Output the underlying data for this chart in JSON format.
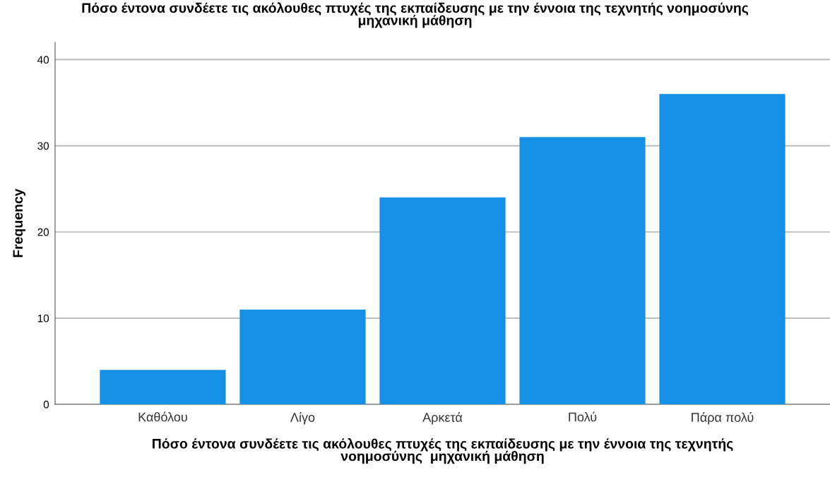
{
  "chart_data": {
    "type": "bar",
    "title": "Πόσο έντονα συνδέετε τις ακόλουθες πτυχές της εκπαίδευσης με την έννοια της τεχνητής νοημοσύνης\nμηχανική μάθηση",
    "xlabel": "Πόσο έντονα συνδέετε τις ακόλουθες πτυχές της εκπαίδευσης με την έννοια της τεχνητής\nνοημοσύνης  μηχανική μάθηση",
    "ylabel": "Frequency",
    "categories": [
      "Καθόλου",
      "Λίγο",
      "Αρκετά",
      "Πολύ",
      "Πάρα πολύ"
    ],
    "values": [
      4,
      11,
      24,
      31,
      36
    ],
    "color": "#1491e6",
    "ylim": [
      0,
      42
    ],
    "yticks": [
      0,
      10,
      20,
      30,
      40
    ],
    "grid": "y"
  }
}
